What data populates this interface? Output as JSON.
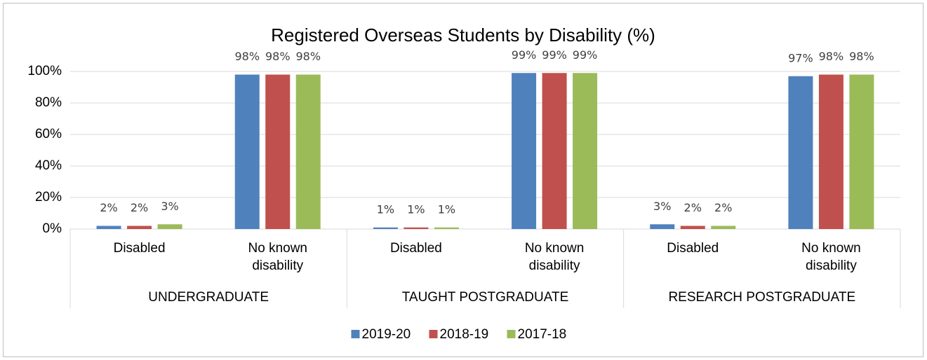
{
  "chart_data": {
    "type": "bar",
    "title": "Registered Overseas Students by Disability (%)",
    "groups": [
      {
        "label": "UNDERGRADUATE",
        "categories": [
          "Disabled",
          "No known disability"
        ]
      },
      {
        "label": "TAUGHT POSTGRADUATE",
        "categories": [
          "Disabled",
          "No known disability"
        ]
      },
      {
        "label": "RESEARCH POSTGRADUATE",
        "categories": [
          "Disabled",
          "No known disability"
        ]
      }
    ],
    "series": [
      {
        "name": "2019-20",
        "color": "#4f81bd",
        "values": [
          2,
          98,
          1,
          99,
          3,
          97
        ],
        "value_labels": [
          "2%",
          "98%",
          "1%",
          "99%",
          "3%",
          "97%"
        ]
      },
      {
        "name": "2018-19",
        "color": "#c0504d",
        "values": [
          2,
          98,
          1,
          99,
          2,
          98
        ],
        "value_labels": [
          "2%",
          "98%",
          "1%",
          "99%",
          "2%",
          "98%"
        ]
      },
      {
        "name": "2017-18",
        "color": "#9bbb59",
        "values": [
          3,
          98,
          1,
          99,
          2,
          98
        ],
        "value_labels": [
          "3%",
          "98%",
          "1%",
          "99%",
          "2%",
          "98%"
        ]
      }
    ],
    "ylim": [
      0,
      100
    ],
    "yticks": [
      {
        "value": 0,
        "label": "0%"
      },
      {
        "value": 20,
        "label": "20%"
      },
      {
        "value": 40,
        "label": "40%"
      },
      {
        "value": 60,
        "label": "60%"
      },
      {
        "value": 80,
        "label": "80%"
      },
      {
        "value": 100,
        "label": "100%"
      }
    ],
    "grid": true,
    "legend": "bottom"
  }
}
